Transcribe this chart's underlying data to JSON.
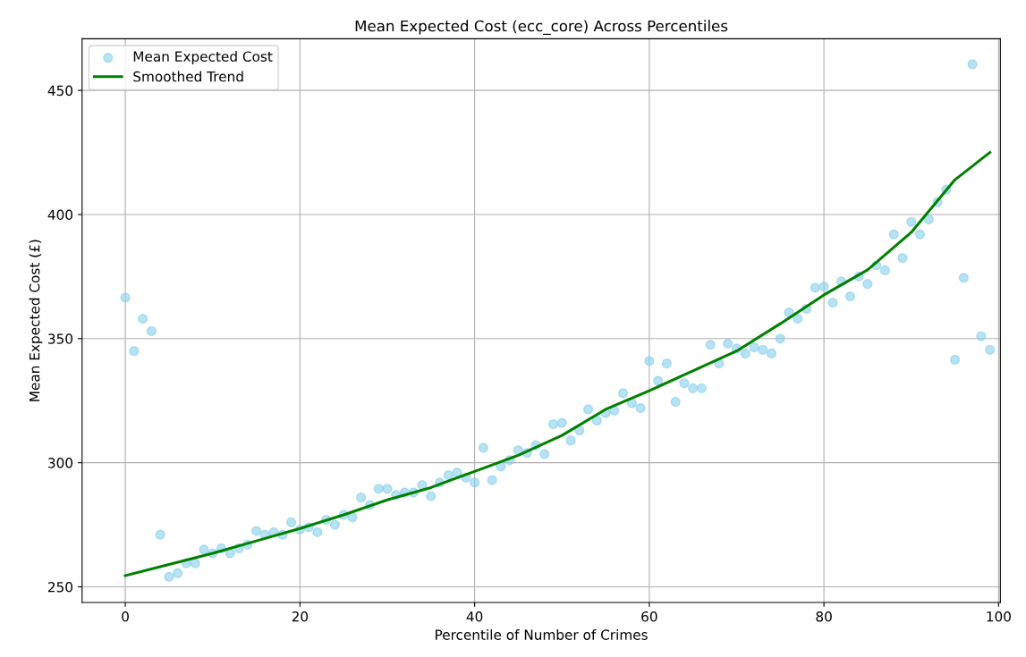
{
  "chart_data": {
    "type": "scatter",
    "title": "Mean Expected Cost (ecc_core) Across Percentiles",
    "xlabel": "Percentile of Number of Crimes",
    "ylabel": "Mean Expected Cost (£)",
    "series": [
      {
        "name": "Mean Expected Cost",
        "color": "#87ceeb",
        "marker": "circle",
        "x": [
          0,
          1,
          2,
          3,
          4,
          5,
          6,
          7,
          8,
          9,
          10,
          11,
          12,
          13,
          14,
          15,
          16,
          17,
          18,
          19,
          20,
          21,
          22,
          23,
          24,
          25,
          26,
          27,
          28,
          29,
          30,
          31,
          32,
          33,
          34,
          35,
          36,
          37,
          38,
          39,
          40,
          41,
          42,
          43,
          44,
          45,
          46,
          47,
          48,
          49,
          50,
          51,
          52,
          53,
          54,
          55,
          56,
          57,
          58,
          59,
          60,
          61,
          62,
          63,
          64,
          65,
          66,
          67,
          68,
          69,
          70,
          71,
          72,
          73,
          74,
          75,
          76,
          77,
          78,
          79,
          80,
          81,
          82,
          83,
          84,
          85,
          86,
          87,
          88,
          89,
          90,
          91,
          92,
          93,
          94,
          95,
          96,
          97,
          98,
          99
        ],
        "values": [
          366.5,
          345,
          358,
          353,
          271,
          254,
          255.5,
          259.5,
          259.5,
          265,
          263.5,
          265.5,
          263.5,
          265.5,
          267,
          272.5,
          271,
          272,
          271,
          276,
          273,
          274,
          272,
          277,
          275,
          279,
          278,
          286,
          283,
          289.5,
          289.5,
          287,
          288,
          288,
          291,
          286.5,
          292,
          295,
          296,
          294,
          292,
          306,
          293,
          298.5,
          301,
          305,
          304,
          307,
          303.5,
          315.5,
          316,
          309,
          313,
          321.5,
          317,
          320,
          321,
          328,
          324,
          322,
          341,
          333,
          340,
          324.5,
          332,
          330,
          330,
          347.5,
          340,
          348,
          346,
          344,
          346.5,
          345.5,
          344,
          350,
          360.5,
          358,
          362,
          370.5,
          371,
          364.5,
          373,
          367,
          375,
          372,
          379.5,
          377.5,
          392,
          382.5,
          397,
          392,
          398,
          405,
          410,
          341.5,
          374.5,
          460.5,
          351,
          345.5
        ]
      },
      {
        "name": "Smoothed Trend",
        "type": "line",
        "color": "#008000",
        "marker": "none",
        "line_style": "solid",
        "x": [
          0,
          5,
          10,
          15,
          20,
          25,
          30,
          35,
          40,
          45,
          50,
          55,
          60,
          65,
          70,
          75,
          80,
          85,
          90,
          95,
          99
        ],
        "values": [
          254.5,
          259,
          263.5,
          268.5,
          273.5,
          279,
          285,
          290,
          296.5,
          303,
          311,
          321.5,
          329,
          337,
          345,
          356,
          367.6,
          377.7,
          392.8,
          414,
          425
        ]
      }
    ],
    "xlim": [
      -4.95,
      100.2
    ],
    "xticks": [
      0,
      20,
      40,
      60,
      80,
      100
    ],
    "ylim": [
      243.7,
      470.8
    ],
    "yticks": [
      250,
      300,
      350,
      400,
      450
    ],
    "grid": true,
    "legend": "top left"
  }
}
